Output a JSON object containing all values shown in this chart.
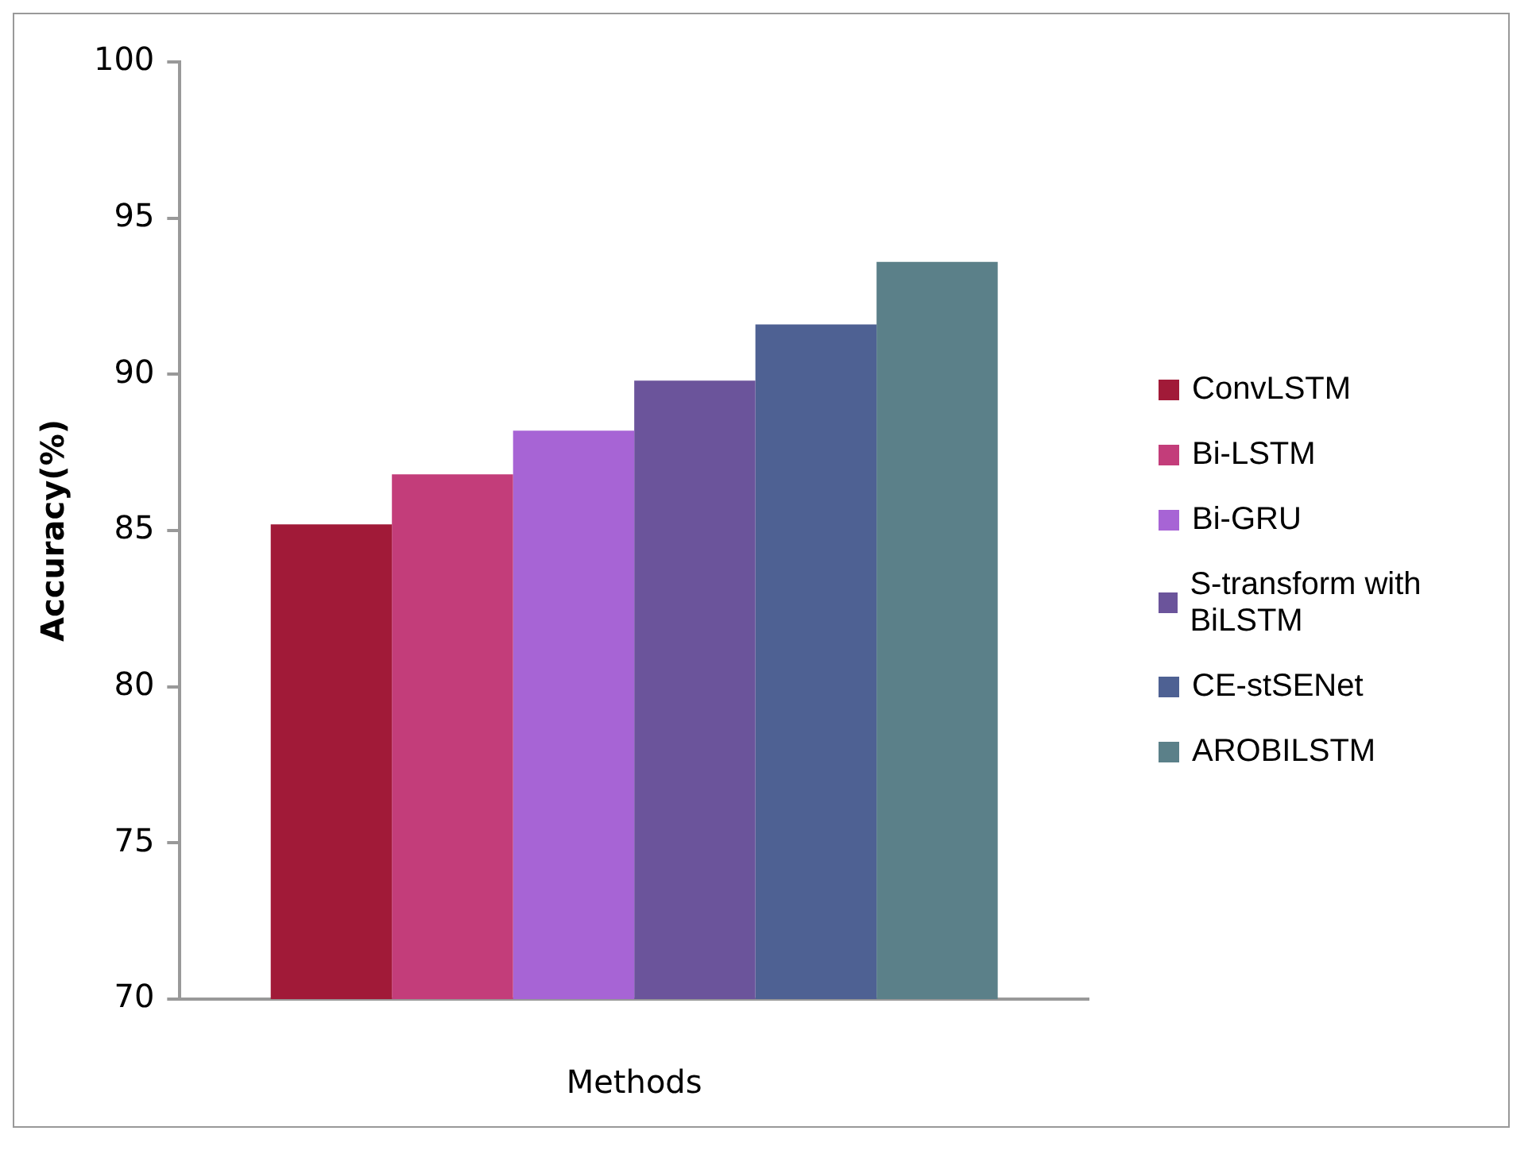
{
  "chart_data": {
    "type": "bar",
    "xlabel": "Methods",
    "ylabel": "Accuracy(%)",
    "categories": [
      null
    ],
    "series": [
      {
        "name": "ConvLSTM",
        "color": "#a11a38",
        "values": [
          85.2
        ]
      },
      {
        "name": "Bi-LSTM",
        "color": "#c33d7a",
        "values": [
          86.8
        ]
      },
      {
        "name": "Bi-GRU",
        "color": "#a764d5",
        "values": [
          88.2
        ]
      },
      {
        "name": "S-transform with BiLSTM",
        "color": "#6b549b",
        "values": [
          89.8
        ]
      },
      {
        "name": "CE-stSENet",
        "color": "#4e6193",
        "values": [
          91.6
        ]
      },
      {
        "name": "AROBILSTM",
        "color": "#5b8089",
        "values": [
          93.6
        ]
      }
    ],
    "ylim": [
      70,
      100
    ],
    "yticks": [
      70,
      75,
      80,
      85,
      90,
      95,
      100
    ],
    "grid": false,
    "legend": "right"
  }
}
